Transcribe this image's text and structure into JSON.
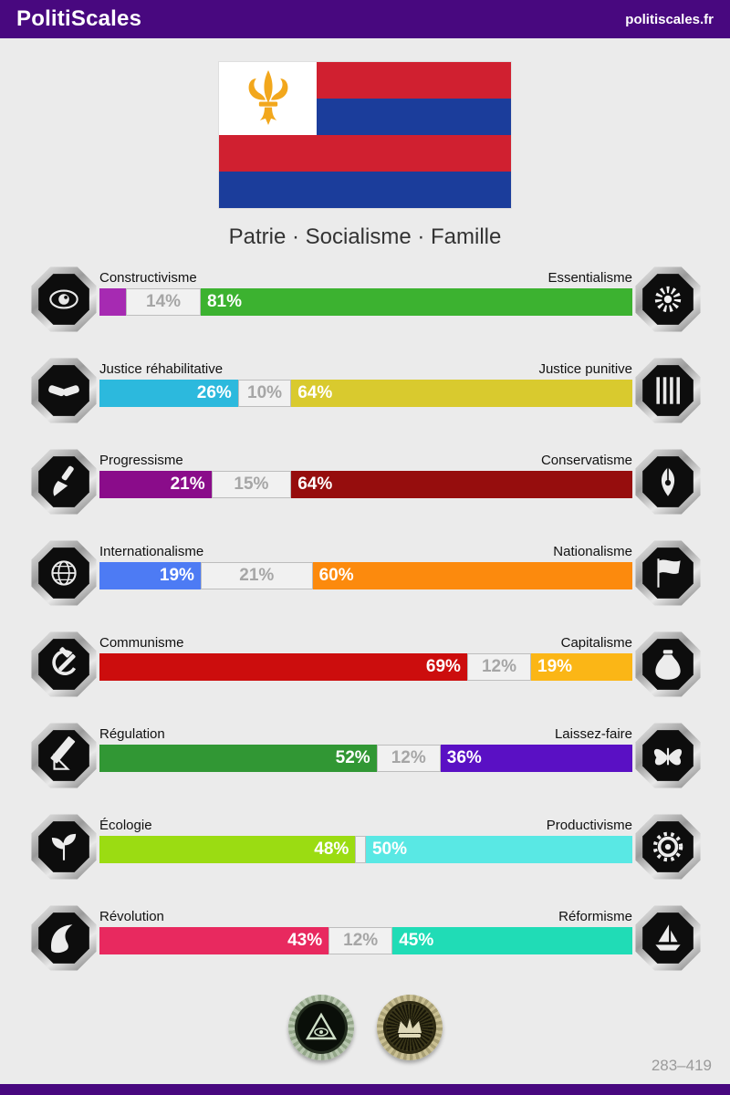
{
  "header": {
    "title": "PolitiScales",
    "site_link": "politiscales.fr",
    "bg_color": "#48087f"
  },
  "page_bg": "#ebebeb",
  "flag": {
    "motto": "Patrie · Socialisme · Famille",
    "colors": {
      "red": "#d02030",
      "blue": "#1b3d9b",
      "canton": "#ffffff",
      "fleur": "#f2a71c"
    },
    "stripes": [
      "red",
      "blue",
      "red",
      "blue"
    ],
    "canton_symbol": "fleur-de-lis-icon"
  },
  "axes": [
    {
      "id": "constructivisme-essentialisme",
      "left": {
        "name": "Constructivisme",
        "pct": 5,
        "label": "",
        "color": "#a62ab2",
        "icon": "eye-icon"
      },
      "neutral": {
        "pct": 14,
        "label": "14%"
      },
      "right": {
        "name": "Essentialisme",
        "pct": 81,
        "label": "81%",
        "color": "#3cb230",
        "icon": "flower-icon"
      }
    },
    {
      "id": "justice",
      "left": {
        "name": "Justice réhabilitative",
        "pct": 26,
        "label": "26%",
        "color": "#2cb9dd",
        "icon": "handshake-icon"
      },
      "neutral": {
        "pct": 10,
        "label": "10%"
      },
      "right": {
        "name": "Justice punitive",
        "pct": 64,
        "label": "64%",
        "color": "#d9ca2e",
        "icon": "prison-bars-icon"
      }
    },
    {
      "id": "progressisme-conservatisme",
      "left": {
        "name": "Progressisme",
        "pct": 21,
        "label": "21%",
        "color": "#8a0c8a",
        "icon": "paintbrush-icon"
      },
      "neutral": {
        "pct": 15,
        "label": "15%"
      },
      "right": {
        "name": "Conservatisme",
        "pct": 64,
        "label": "64%",
        "color": "#960d0d",
        "icon": "pen-nib-icon"
      }
    },
    {
      "id": "internationalisme-nationalisme",
      "left": {
        "name": "Internationalisme",
        "pct": 19,
        "label": "19%",
        "color": "#4d7bf4",
        "icon": "globe-icon"
      },
      "neutral": {
        "pct": 21,
        "label": "21%"
      },
      "right": {
        "name": "Nationalisme",
        "pct": 60,
        "label": "60%",
        "color": "#fc8a0d",
        "icon": "flag-icon"
      }
    },
    {
      "id": "communisme-capitalisme",
      "left": {
        "name": "Communisme",
        "pct": 69,
        "label": "69%",
        "color": "#cc0d0d",
        "icon": "hammer-sickle-icon"
      },
      "neutral": {
        "pct": 12,
        "label": "12%"
      },
      "right": {
        "name": "Capitalisme",
        "pct": 19,
        "label": "19%",
        "color": "#fbb616",
        "icon": "money-bag-icon"
      }
    },
    {
      "id": "regulation-laissezfaire",
      "left": {
        "name": "Régulation",
        "pct": 52,
        "label": "52%",
        "color": "#319734",
        "icon": "ruler-icon"
      },
      "neutral": {
        "pct": 12,
        "label": "12%"
      },
      "right": {
        "name": "Laissez-faire",
        "pct": 36,
        "label": "36%",
        "color": "#5a10c4",
        "icon": "butterfly-icon"
      }
    },
    {
      "id": "ecologie-productivisme",
      "left": {
        "name": "Écologie",
        "pct": 48,
        "label": "48%",
        "color": "#9bdc12",
        "icon": "plant-icon"
      },
      "neutral": {
        "pct": 2,
        "label": ""
      },
      "right": {
        "name": "Productivisme",
        "pct": 50,
        "label": "50%",
        "color": "#59e8e4",
        "icon": "gear-icon"
      }
    },
    {
      "id": "revolution-reformisme",
      "left": {
        "name": "Révolution",
        "pct": 43,
        "label": "43%",
        "color": "#e8295f",
        "icon": "wave-icon"
      },
      "neutral": {
        "pct": 12,
        "label": "12%"
      },
      "right": {
        "name": "Réformisme",
        "pct": 45,
        "label": "45%",
        "color": "#20dcb6",
        "icon": "sailboat-icon"
      }
    }
  ],
  "neutral_style": {
    "bg": "#f1f1f1",
    "border": "#bdbdbd",
    "text": "#a6a6a6"
  },
  "bonus_badges": [
    {
      "name": "complotisme-coin",
      "icon": "eye-in-triangle-icon",
      "ring_color": "#b7c6ae"
    },
    {
      "name": "monarchisme-coin",
      "icon": "crown-icon",
      "ring_color": "#cac093"
    }
  ],
  "footer": {
    "result_range": "283–419"
  }
}
